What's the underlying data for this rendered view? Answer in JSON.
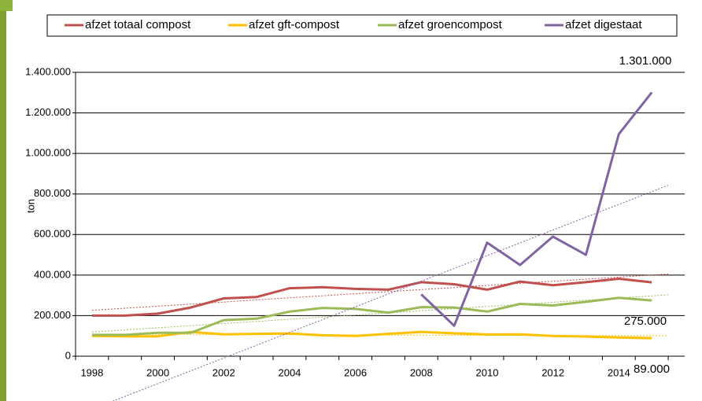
{
  "chart_data": {
    "type": "line",
    "y_label": "ton",
    "categories": [
      "1998",
      null,
      "2000",
      null,
      "2002",
      null,
      "2004",
      null,
      "2006",
      null,
      "2008",
      null,
      "2010",
      null,
      "2012",
      null,
      "2014",
      null
    ],
    "series": [
      {
        "name": "afzet totaal compost",
        "color": "#c0504d",
        "values": [
          200000,
          200000,
          210000,
          240000,
          285000,
          292000,
          335000,
          340000,
          332000,
          328000,
          365000,
          355000,
          328000,
          368000,
          350000,
          365000,
          382000,
          364000
        ]
      },
      {
        "name": "afzet gft-compost",
        "color": "#ffc000",
        "values": [
          100000,
          98000,
          98000,
          120000,
          108000,
          110000,
          112000,
          103000,
          100000,
          110000,
          120000,
          113000,
          107000,
          108000,
          100000,
          97000,
          92000,
          89000
        ]
      },
      {
        "name": "afzet groencompost",
        "color": "#9bbb59",
        "values": [
          105000,
          105000,
          115000,
          115000,
          178000,
          185000,
          220000,
          238000,
          233000,
          215000,
          242000,
          240000,
          220000,
          258000,
          250000,
          268000,
          288000,
          275000
        ]
      },
      {
        "name": "afzet digestaat",
        "color": "#8064a2",
        "values": [
          null,
          null,
          null,
          null,
          null,
          null,
          null,
          null,
          null,
          null,
          305000,
          150000,
          560000,
          450000,
          590000,
          500000,
          1095000,
          1301000
        ]
      }
    ],
    "annotations": [
      "1.301.000",
      "275.000",
      "89.000"
    ],
    "ylim": [
      0,
      1400000
    ],
    "yticks": [
      0,
      {
        "value": 200000,
        "label": "200.000"
      },
      {
        "value": 400000,
        "label": "400.000"
      },
      {
        "value": 600000,
        "label": "600.000"
      },
      {
        "value": 800000,
        "label": "800.000"
      },
      {
        "value": 1000000,
        "label": "1.000.000"
      },
      {
        "value": 1200000,
        "label": "1.200.000"
      },
      {
        "value": 1400000,
        "label": "1.400.000"
      }
    ],
    "grid": true,
    "trendlines": true
  }
}
